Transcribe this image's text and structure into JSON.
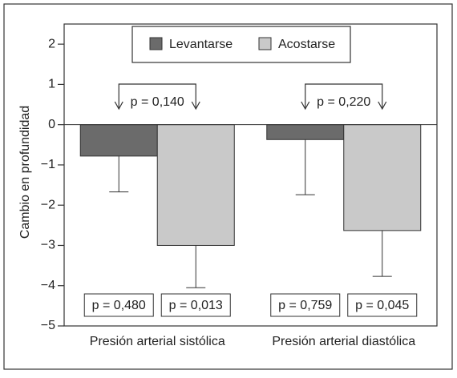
{
  "chart_data": {
    "type": "bar",
    "y_label": "Cambio en profundidad",
    "categories": [
      "Presión arterial sistólica",
      "Presión arterial diastólica"
    ],
    "series": [
      {
        "name": "Levantarse",
        "color": "#6b6b6b",
        "values": [
          -0.78,
          -0.37
        ],
        "errors": [
          0.89,
          1.37
        ],
        "p_labels": [
          "p = 0,480",
          "p = 0,759"
        ]
      },
      {
        "name": "Acostarse",
        "color": "#c9c9c9",
        "values": [
          -3.0,
          -2.63
        ],
        "errors": [
          1.05,
          1.14
        ],
        "p_labels": [
          "p = 0,013",
          "p = 0,045"
        ]
      }
    ],
    "comparison_labels": [
      "p = 0,140",
      "p = 0,220"
    ],
    "ylim": [
      -5,
      2.5
    ],
    "yticks": [
      {
        "value": -5,
        "label": "−5"
      },
      {
        "value": -4,
        "label": "−4"
      },
      {
        "value": -3,
        "label": "−3"
      },
      {
        "value": -2,
        "label": "−2"
      },
      {
        "value": -1,
        "label": "−1"
      },
      0,
      1,
      2
    ],
    "grid": false,
    "legend": "top"
  }
}
